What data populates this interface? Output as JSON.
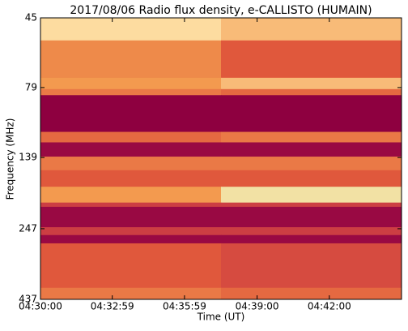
{
  "chart_data": {
    "type": "heatmap",
    "title": "2017/08/06  Radio flux density, e-CALLISTO (HUMAIN)",
    "x_label": "Time (UT)",
    "y_label": "Frequency (MHz)",
    "xlim": [
      0,
      900
    ],
    "xticks": [
      {
        "value": 0,
        "label": "04:30:00"
      },
      {
        "value": 179,
        "label": "04:32:59"
      },
      {
        "value": 359,
        "label": "04:35:59"
      },
      {
        "value": 540,
        "label": "04:39:00"
      },
      {
        "value": 720,
        "label": "04:42:00"
      }
    ],
    "ylim": [
      45,
      437
    ],
    "y_scale": "log",
    "y_inverted": true,
    "yticks": [
      45,
      79,
      139,
      247,
      437
    ],
    "x_edges": [
      0,
      450,
      900
    ],
    "y_edges": [
      45,
      54,
      73,
      80,
      84,
      113,
      123,
      138,
      154,
      176,
      200,
      207,
      244,
      260,
      278,
      398,
      437
    ],
    "values": [
      [
        0.8,
        0.7
      ],
      [
        0.55,
        0.4
      ],
      [
        0.6,
        0.7
      ],
      [
        0.5,
        0.45
      ],
      [
        0.0,
        0.0
      ],
      [
        0.45,
        0.5
      ],
      [
        0.05,
        0.05
      ],
      [
        0.5,
        0.5
      ],
      [
        0.4,
        0.4
      ],
      [
        0.6,
        0.85
      ],
      [
        0.3,
        0.3
      ],
      [
        0.05,
        0.05
      ],
      [
        0.3,
        0.3
      ],
      [
        0.05,
        0.05
      ],
      [
        0.4,
        0.35
      ],
      [
        0.5,
        0.45
      ]
    ],
    "colormap": [
      "#8e0040",
      "#b8234a",
      "#e0583c",
      "#f39a4f",
      "#fddca0",
      "#d0f0b0"
    ]
  }
}
